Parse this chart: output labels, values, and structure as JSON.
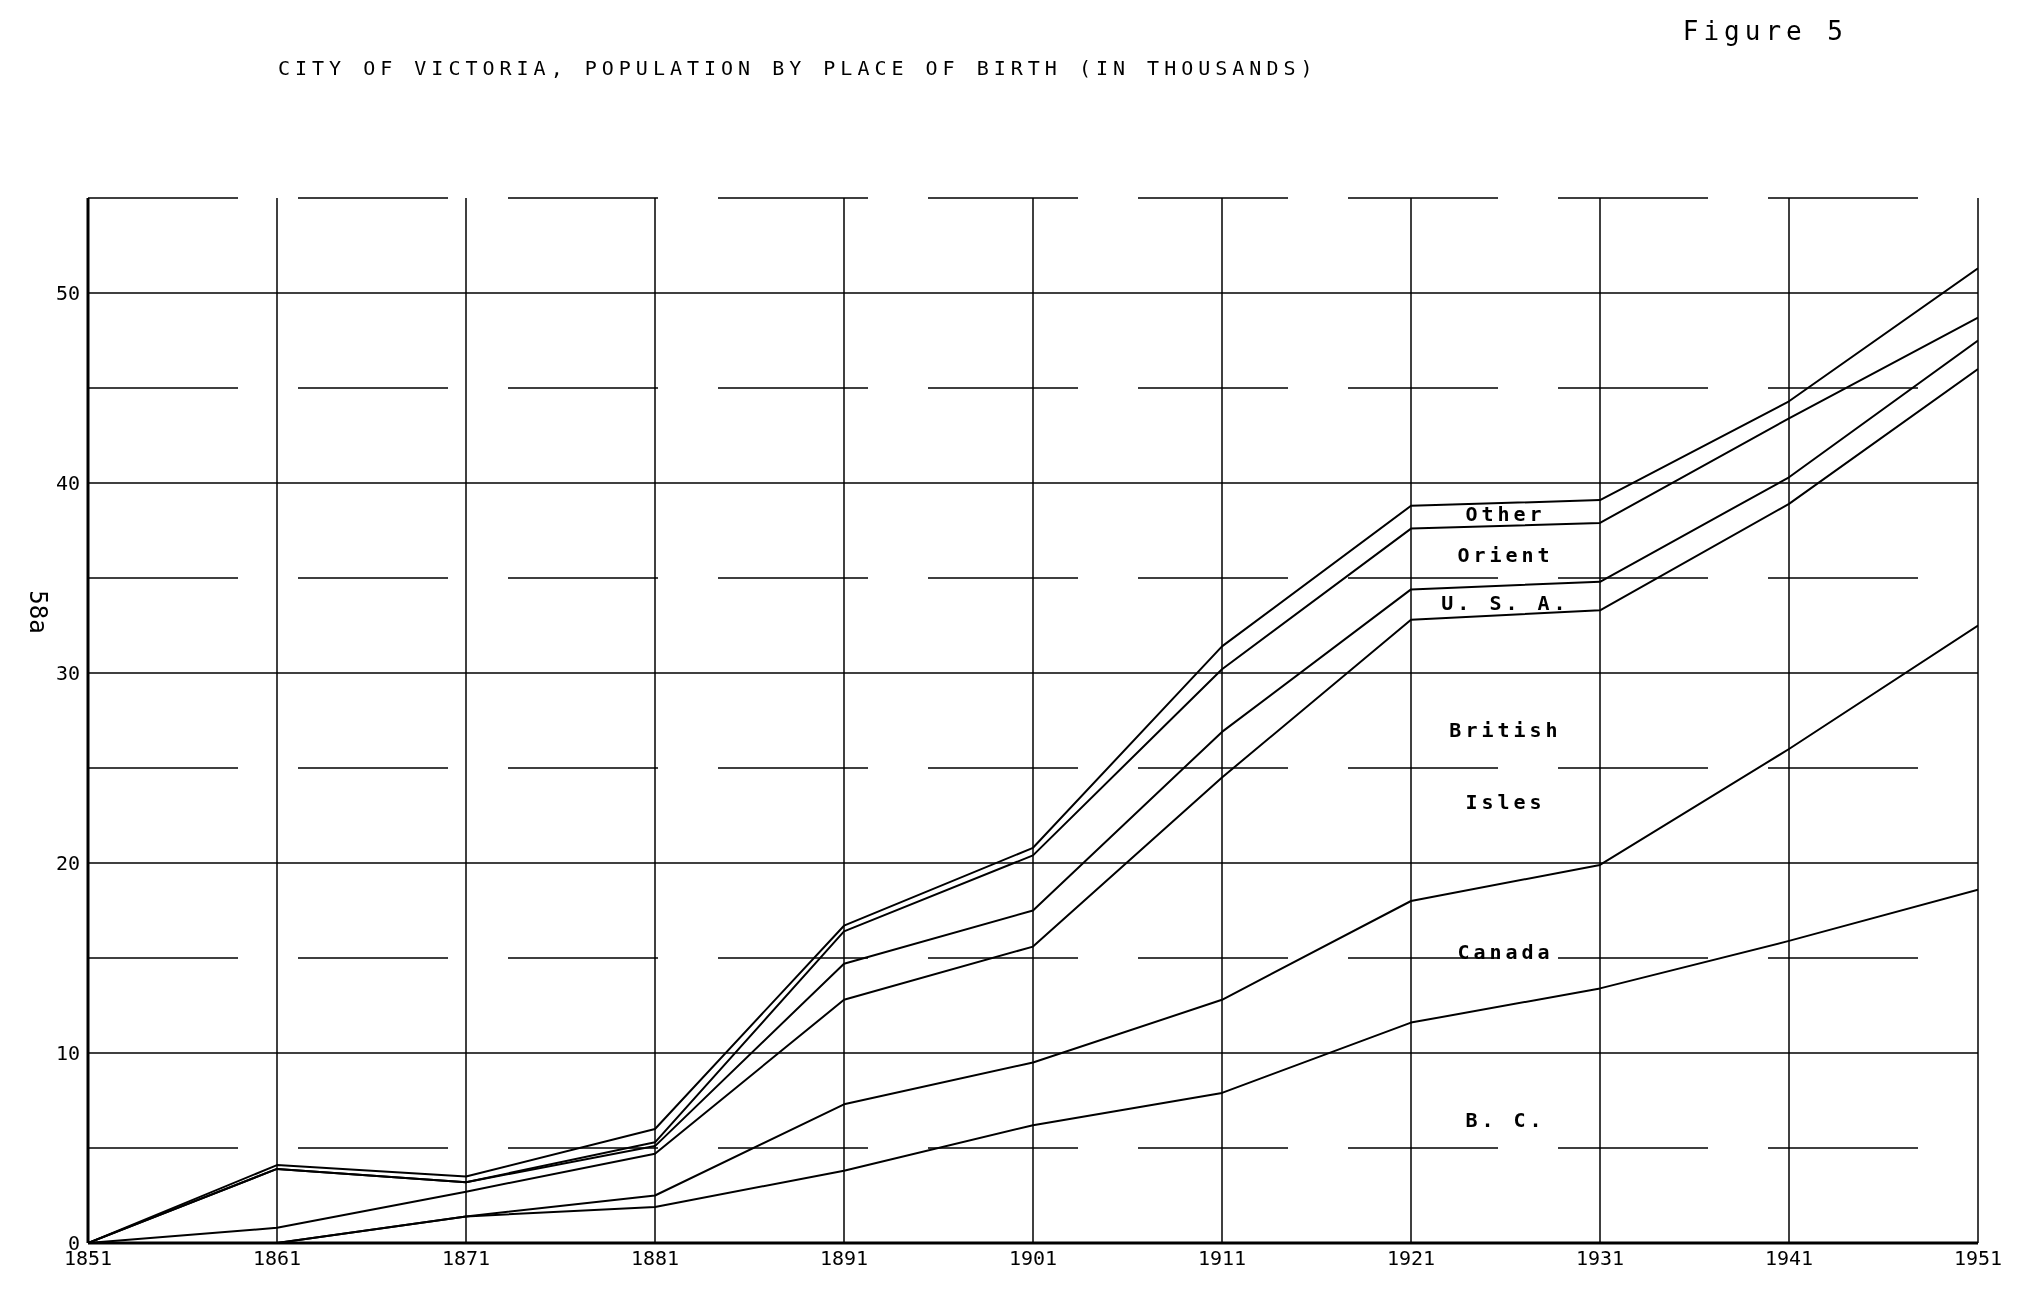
{
  "chart_data": {
    "type": "line",
    "title": "CITY OF VICTORIA, POPULATION BY PLACE OF BIRTH (IN THOUSANDS)",
    "x": [
      1851,
      1861,
      1871,
      1881,
      1891,
      1901,
      1911,
      1921,
      1931,
      1941,
      1951
    ],
    "series": [
      {
        "color": "#000000",
        "values": [
          0,
          4.1,
          3.5,
          6.0,
          16.7,
          20.8,
          31.4,
          38.8,
          39.1,
          44.3,
          51.3
        ]
      },
      {
        "color": "#000000",
        "values": [
          0,
          3.9,
          3.2,
          5.3,
          16.4,
          20.4,
          30.2,
          37.6,
          37.9,
          43.4,
          48.7
        ]
      },
      {
        "color": "#000000",
        "values": [
          0,
          3.9,
          3.2,
          5.1,
          14.7,
          17.5,
          26.9,
          34.4,
          34.8,
          40.3,
          47.5
        ]
      },
      {
        "color": "#000000",
        "values": [
          0,
          0.8,
          2.7,
          4.7,
          12.8,
          15.6,
          24.5,
          32.8,
          33.3,
          38.9,
          46.0
        ]
      },
      {
        "color": "#000000",
        "values": [
          0,
          0,
          1.4,
          2.5,
          7.3,
          9.5,
          12.8,
          18.0,
          19.9,
          26.0,
          32.5
        ]
      },
      {
        "color": "#000000",
        "values": [
          0,
          0,
          1.4,
          1.9,
          3.8,
          6.2,
          7.9,
          11.6,
          13.4,
          15.9,
          18.6
        ]
      }
    ],
    "xlim": [
      1851,
      1951
    ],
    "xticks": [
      1851,
      1861,
      1871,
      1881,
      1891,
      1901,
      1911,
      1921,
      1931,
      1941,
      1951
    ],
    "ylim": [
      0,
      55
    ],
    "yticks": [
      0,
      {
        "value": 5,
        "label": null
      },
      10,
      {
        "value": 15,
        "label": null
      },
      20,
      {
        "value": 25,
        "label": null
      },
      30,
      {
        "value": 35,
        "label": null
      },
      40,
      {
        "value": 45,
        "label": null
      },
      50,
      {
        "value": 55,
        "label": null
      }
    ],
    "grid": true,
    "annotations": [
      "Figure 5",
      "58a",
      "Other",
      "Orient",
      "U. S. A.",
      "British",
      "Isles",
      "Canada",
      "B. C."
    ]
  }
}
